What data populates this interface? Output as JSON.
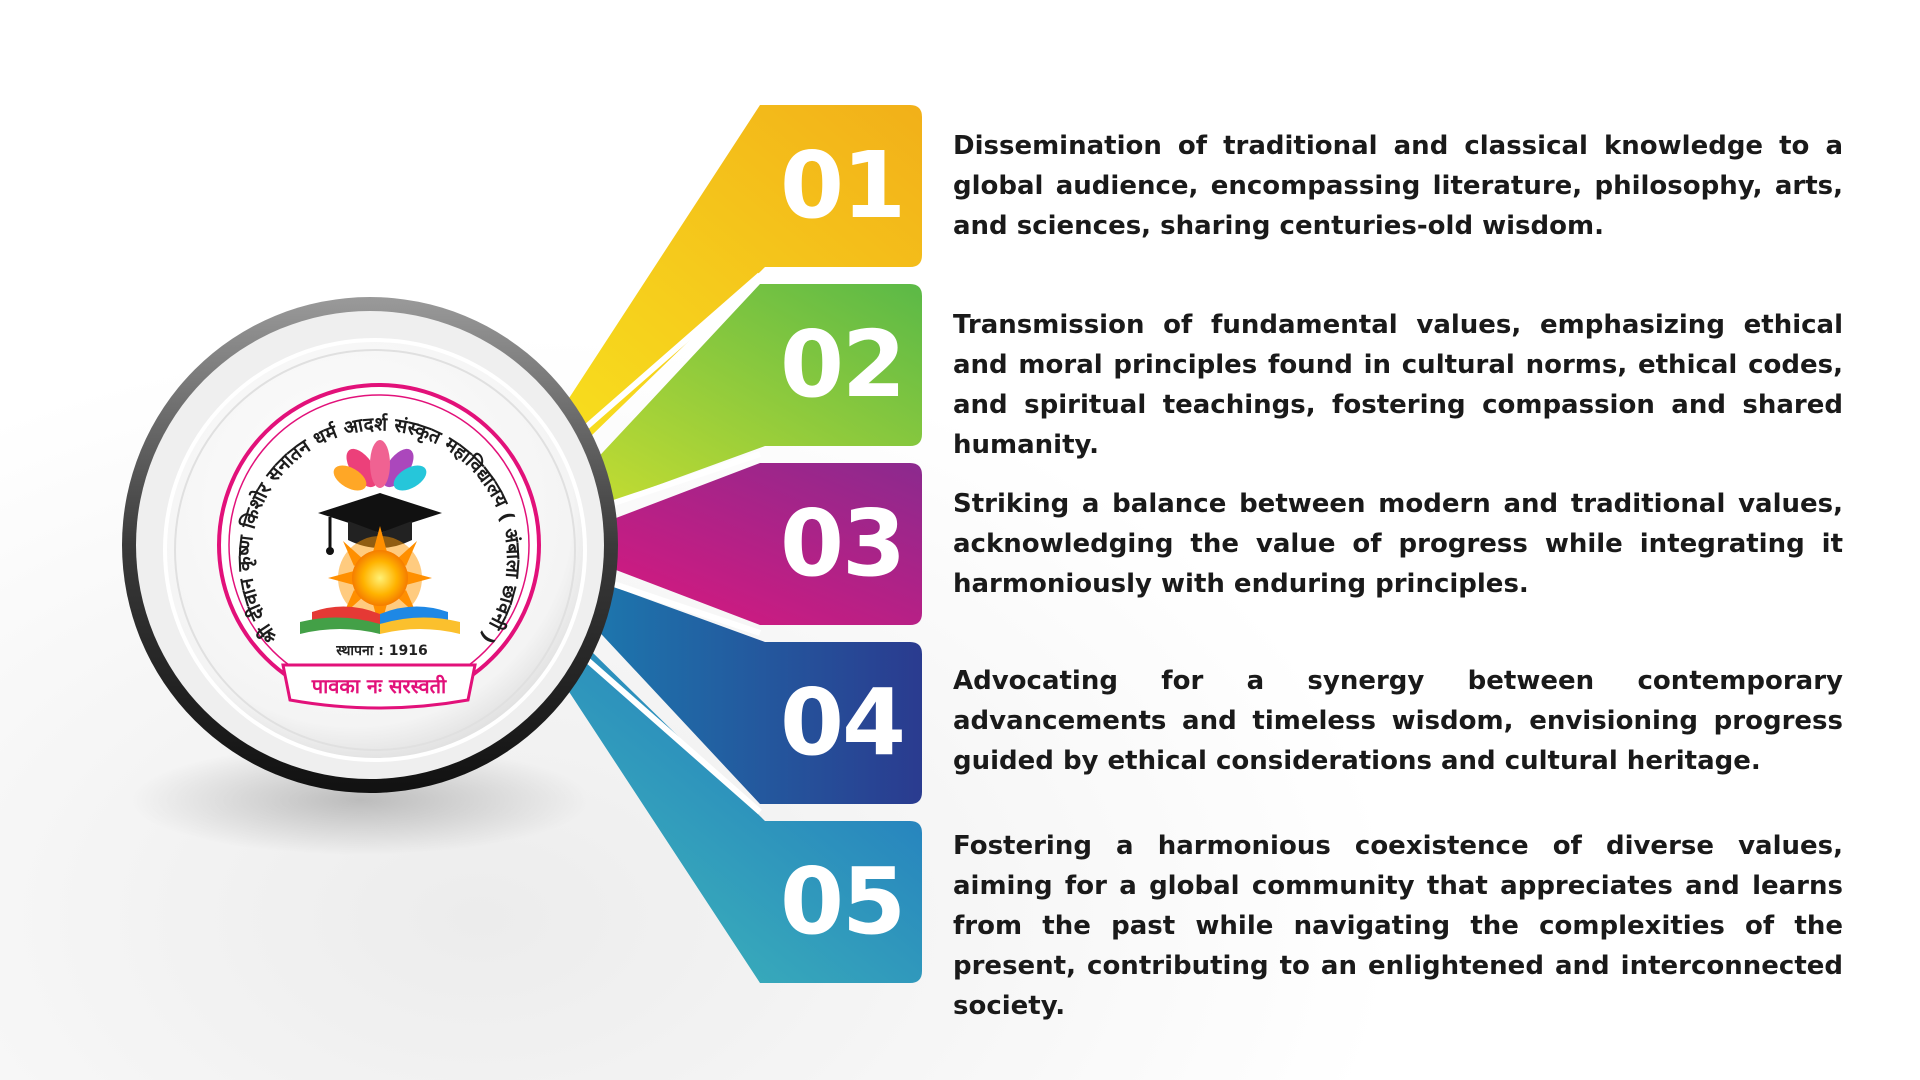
{
  "logo": {
    "arc_text": "श्री दीवान कृष्ण किशोर सनातन धर्म आदर्श संस्कृत महाविद्यालय ( अंबाला छावनी )",
    "founded": "स्थापना : 1916",
    "motto": "पावका नः सरस्वती"
  },
  "items": [
    {
      "number": "01",
      "text": "Dissemination of traditional and classical knowledge to a global audience, encompassing literature, philosophy, arts, and sciences, sharing centuries-old wisdom.",
      "color_top": "#f2b019",
      "color_bottom": "#f8e21e"
    },
    {
      "number": "02",
      "text": "Transmission of fundamental values, emphasizing ethical and moral principles found in cultural norms, ethical codes, and spiritual teachings, fostering compassion and shared humanity.",
      "color_top": "#5bb947",
      "color_bottom": "#cfe02f"
    },
    {
      "number": "03",
      "text": "Striking a balance between modern and traditional values, acknowledging the value of progress while integrating it harmoniously with enduring principles.",
      "color_top": "#8b2a8e",
      "color_bottom": "#e3167d"
    },
    {
      "number": "04",
      "text": "Advocating for a synergy between contemporary advancements and timeless wisdom, envisioning progress guided by ethical considerations and cultural heritage.",
      "color_top": "#2a3b8f",
      "color_bottom": "#1a84b4"
    },
    {
      "number": "05",
      "text": "Fostering a harmonious coexistence of diverse values, aiming for a global community that appreciates and learns from the past while navigating the complexities of the present, contributing to an enlightened and interconnected society.",
      "color_top": "#1e70c0",
      "color_bottom": "#42c1b8"
    }
  ]
}
